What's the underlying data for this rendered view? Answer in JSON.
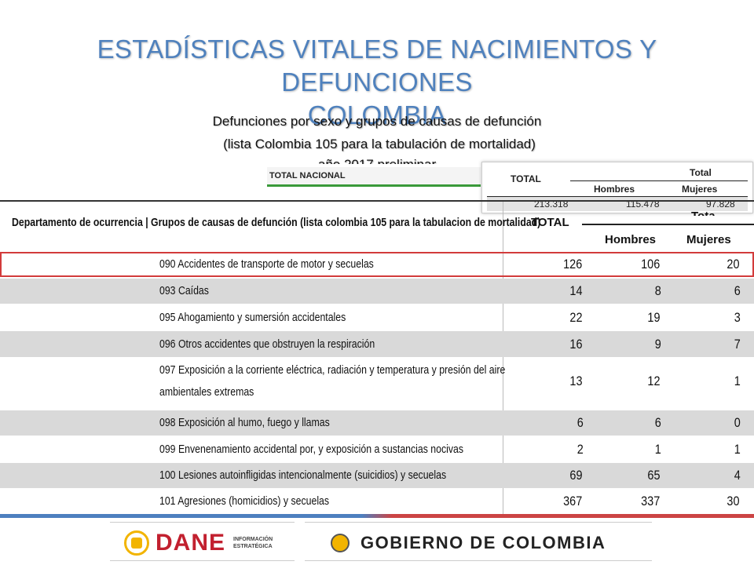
{
  "title_line1": "ESTADÍSTICAS VITALES DE NACIMIENTOS Y DEFUNCIONES",
  "title_line2": "COLOMBIA",
  "subtitle_line1": "Defunciones por sexo y grupos de causas de defunción",
  "subtitle_line2": "(lista Colombia 105 para la tabulación de mortalidad)",
  "subtitle_line3": "año 2017 preliminar",
  "total_nacional": {
    "label": "TOTAL NACIONAL",
    "total_header": "TOTAL",
    "group_header": "Total",
    "hombres_header": "Hombres",
    "mujeres_header": "Mujeres",
    "total": "213.318",
    "hombres": "115.478",
    "mujeres": "97.828"
  },
  "table": {
    "header_desc": "Departamento de ocurrencia | Grupos de causas de defunción (lista colombia 105 para la tabulacion de mortalidad)",
    "header_total": "TOTAL",
    "header_group": "Total",
    "header_hombres": "Hombres",
    "header_mujeres": "Mujeres",
    "rows": [
      {
        "desc": "090 Accidentes de transporte de motor y secuelas",
        "total": "126",
        "hombres": "106",
        "mujeres": "20"
      },
      {
        "desc": "093 Caídas",
        "total": "14",
        "hombres": "8",
        "mujeres": "6"
      },
      {
        "desc": "095 Ahogamiento y sumersión accidentales",
        "total": "22",
        "hombres": "19",
        "mujeres": "3"
      },
      {
        "desc": "096 Otros accidentes que obstruyen la respiración",
        "total": "16",
        "hombres": "9",
        "mujeres": "7"
      },
      {
        "desc": "097 Exposición a la corriente eléctrica, radiación y temperatura y presión del aire",
        "desc2": "ambientales extremas",
        "total": "13",
        "hombres": "12",
        "mujeres": "1"
      },
      {
        "desc": "098 Exposición al humo, fuego y llamas",
        "total": "6",
        "hombres": "6",
        "mujeres": "0"
      },
      {
        "desc": "099 Envenenamiento accidental por, y exposición a sustancias nocivas",
        "total": "2",
        "hombres": "1",
        "mujeres": "1"
      },
      {
        "desc": "100 Lesiones autoinfligidas intencionalmente (suicidios) y secuelas",
        "total": "69",
        "hombres": "65",
        "mujeres": "4"
      },
      {
        "desc": "101 Agresiones (homicidios) y secuelas",
        "total": "367",
        "hombres": "337",
        "mujeres": "30"
      }
    ]
  },
  "footer": {
    "dane": "DANE",
    "dane_small1": "INFORMACIÓN",
    "dane_small2": "ESTRATÉGICA",
    "gobierno": "GOBIERNO DE COLOMBIA"
  },
  "colors": {
    "title": "#4f81bd",
    "highlight": "#d23b3b",
    "row_shade": "#d9d9d9",
    "dane_red": "#c2202f"
  }
}
